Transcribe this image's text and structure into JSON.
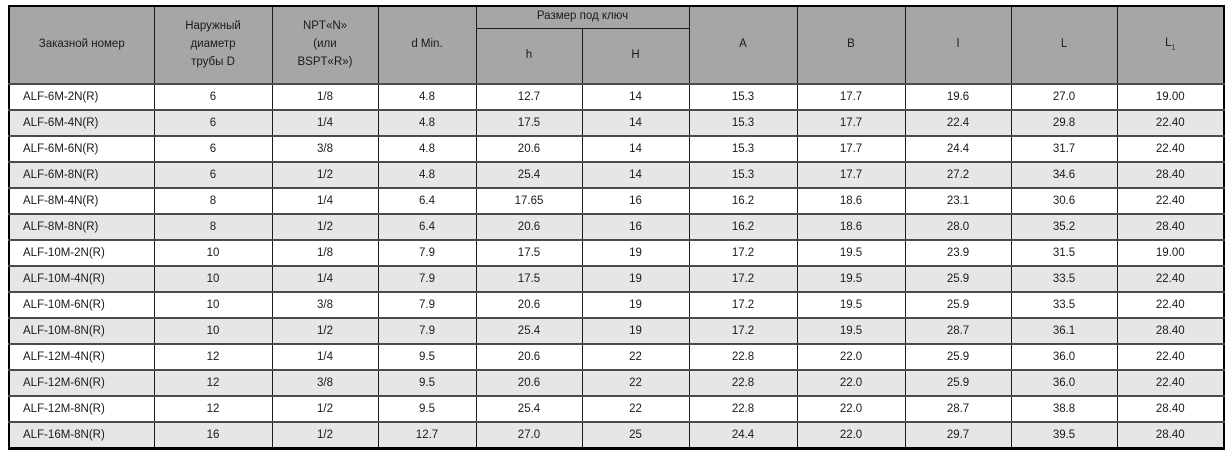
{
  "colors": {
    "header_bg": "#a6a6a6",
    "row_bg": "#ffffff",
    "row_alt_bg": "#e6e6e6",
    "outer_border": "#000000",
    "inner_border": "#1c1c1c",
    "row_separator": "#4b4b4b",
    "text": "#1a1a1a"
  },
  "table": {
    "headers": {
      "order_number": "Заказной номер",
      "outer_diameter": "Наружный\nдиаметр\nтрубы D",
      "npt": "NPT«N»\n(или\nBSPT«R»)",
      "d_min": "d Min.",
      "wrench_group": "Размер под ключ",
      "h": "h",
      "H": "H",
      "A": "A",
      "B": "B",
      "l": "l",
      "L": "L",
      "L1_base": "L",
      "L1_sub": "1"
    },
    "rows": [
      {
        "cells": [
          "ALF-6M-2N(R)",
          "6",
          "1/8",
          "4.8",
          "12.7",
          "14",
          "15.3",
          "17.7",
          "19.6",
          "27.0",
          "19.00"
        ]
      },
      {
        "cells": [
          "ALF-6M-4N(R)",
          "6",
          "1/4",
          "4.8",
          "17.5",
          "14",
          "15.3",
          "17.7",
          "22.4",
          "29.8",
          "22.40"
        ]
      },
      {
        "cells": [
          "ALF-6M-6N(R)",
          "6",
          "3/8",
          "4.8",
          "20.6",
          "14",
          "15.3",
          "17.7",
          "24.4",
          "31.7",
          "22.40"
        ]
      },
      {
        "cells": [
          "ALF-6M-8N(R)",
          "6",
          "1/2",
          "4.8",
          "25.4",
          "14",
          "15.3",
          "17.7",
          "27.2",
          "34.6",
          "28.40"
        ]
      },
      {
        "cells": [
          "ALF-8M-4N(R)",
          "8",
          "1/4",
          "6.4",
          "17.65",
          "16",
          "16.2",
          "18.6",
          "23.1",
          "30.6",
          "22.40"
        ]
      },
      {
        "cells": [
          "ALF-8M-8N(R)",
          "8",
          "1/2",
          "6.4",
          "20.6",
          "16",
          "16.2",
          "18.6",
          "28.0",
          "35.2",
          "28.40"
        ]
      },
      {
        "cells": [
          "ALF-10M-2N(R)",
          "10",
          "1/8",
          "7.9",
          "17.5",
          "19",
          "17.2",
          "19.5",
          "23.9",
          "31.5",
          "19.00"
        ]
      },
      {
        "cells": [
          "ALF-10M-4N(R)",
          "10",
          "1/4",
          "7.9",
          "17.5",
          "19",
          "17.2",
          "19.5",
          "25.9",
          "33.5",
          "22.40"
        ]
      },
      {
        "cells": [
          "ALF-10M-6N(R)",
          "10",
          "3/8",
          "7.9",
          "20.6",
          "19",
          "17.2",
          "19.5",
          "25.9",
          "33.5",
          "22.40"
        ]
      },
      {
        "cells": [
          "ALF-10M-8N(R)",
          "10",
          "1/2",
          "7.9",
          "25.4",
          "19",
          "17.2",
          "19.5",
          "28.7",
          "36.1",
          "28.40"
        ]
      },
      {
        "cells": [
          "ALF-12M-4N(R)",
          "12",
          "1/4",
          "9.5",
          "20.6",
          "22",
          "22.8",
          "22.0",
          "25.9",
          "36.0",
          "22.40"
        ]
      },
      {
        "cells": [
          "ALF-12M-6N(R)",
          "12",
          "3/8",
          "9.5",
          "20.6",
          "22",
          "22.8",
          "22.0",
          "25.9",
          "36.0",
          "22.40"
        ]
      },
      {
        "cells": [
          "ALF-12M-8N(R)",
          "12",
          "1/2",
          "9.5",
          "25.4",
          "22",
          "22.8",
          "22.0",
          "28.7",
          "38.8",
          "28.40"
        ]
      },
      {
        "cells": [
          "ALF-16M-8N(R)",
          "16",
          "1/2",
          "12.7",
          "27.0",
          "25",
          "24.4",
          "22.0",
          "29.7",
          "39.5",
          "28.40"
        ]
      }
    ]
  }
}
